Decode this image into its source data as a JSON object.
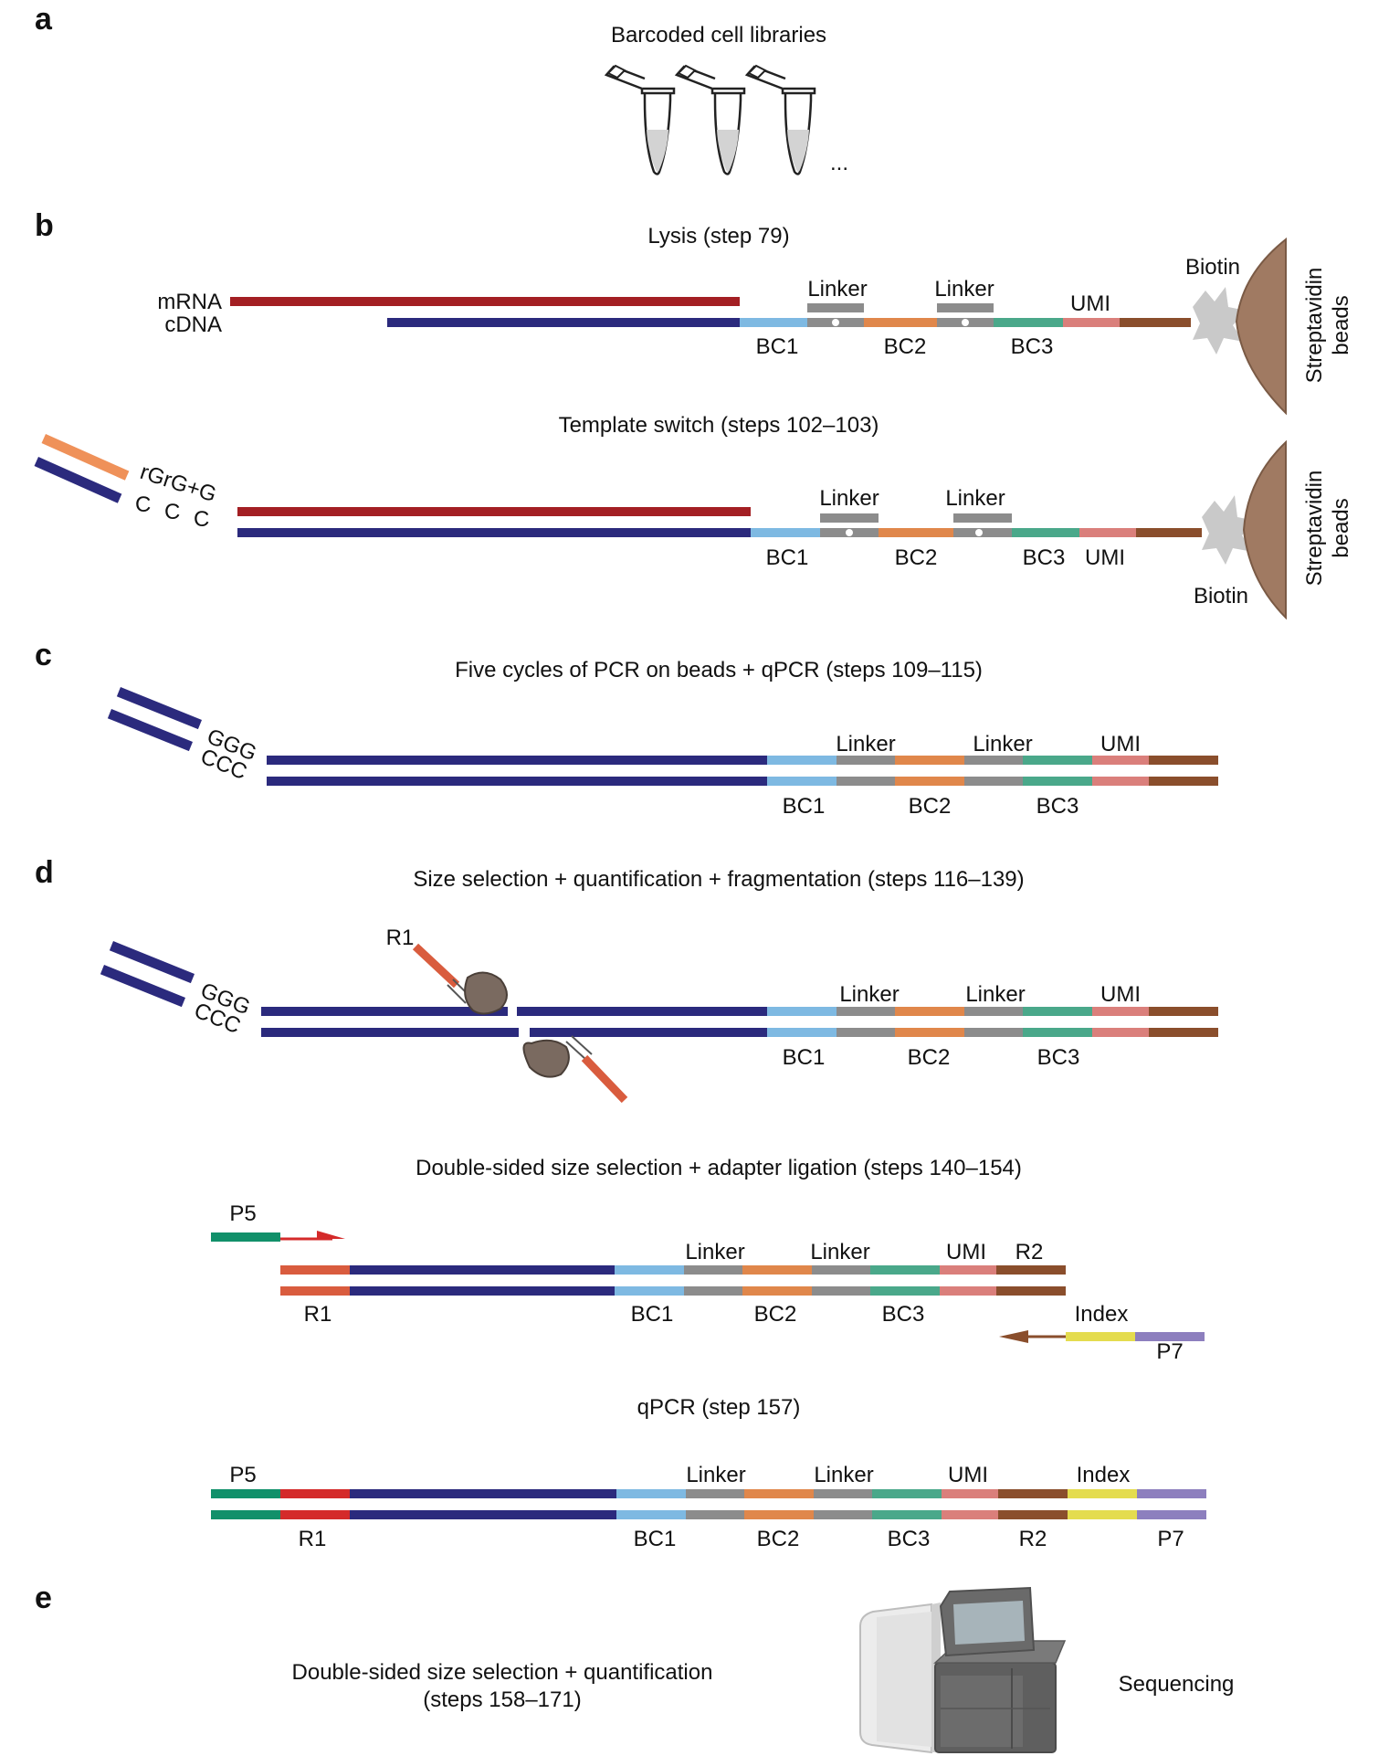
{
  "panels": {
    "a": "a",
    "b": "b",
    "c": "c",
    "d": "d",
    "e": "e"
  },
  "section_a": {
    "title": "Barcoded cell libraries",
    "ellipsis": "..."
  },
  "section_b1": {
    "title": "Lysis (step 79)",
    "mrna": "mRNA",
    "cdna": "cDNA",
    "linker1": "Linker",
    "linker2": "Linker",
    "umi": "UMI",
    "biotin": "Biotin",
    "bc1": "BC1",
    "bc2": "BC2",
    "bc3": "BC3",
    "beads": "Streptavidin beads"
  },
  "section_b2": {
    "title": "Template switch (steps 102–103)",
    "tso": "rGrG+G",
    "c1": "C",
    "c2": "C",
    "c3": "C",
    "linker1": "Linker",
    "linker2": "Linker",
    "bc1": "BC1",
    "bc2": "BC2",
    "bc3": "BC3",
    "umi": "UMI",
    "biotin": "Biotin",
    "beads": "Streptavidin beads"
  },
  "section_c": {
    "title": "Five cycles of PCR on beads + qPCR (steps 109–115)",
    "ggg": "GGG",
    "ccc": "CCC",
    "linker1": "Linker",
    "linker2": "Linker",
    "umi": "UMI",
    "bc1": "BC1",
    "bc2": "BC2",
    "bc3": "BC3"
  },
  "section_d1": {
    "title": "Size selection + quantification + fragmentation (steps 116–139)",
    "r1": "R1",
    "ggg": "GGG",
    "ccc": "CCC",
    "linker1": "Linker",
    "linker2": "Linker",
    "umi": "UMI",
    "bc1": "BC1",
    "bc2": "BC2",
    "bc3": "BC3"
  },
  "section_d2": {
    "title": "Double-sided size selection + adapter ligation (steps 140–154)",
    "p5": "P5",
    "linker1": "Linker",
    "linker2": "Linker",
    "umi": "UMI",
    "r2": "R2",
    "r1": "R1",
    "bc1": "BC1",
    "bc2": "BC2",
    "bc3": "BC3",
    "index": "Index",
    "p7": "P7"
  },
  "section_d3": {
    "title": "qPCR (step 157)",
    "p5": "P5",
    "linker1": "Linker",
    "linker2": "Linker",
    "umi": "UMI",
    "index": "Index",
    "r1": "R1",
    "bc1": "BC1",
    "bc2": "BC2",
    "bc3": "BC3",
    "r2": "R2",
    "p7": "P7"
  },
  "section_e": {
    "line1": "Double-sided size selection + quantification",
    "line2": "(steps 158–171)",
    "sequencing": "Sequencing"
  },
  "colors": {
    "mrna": "#a31f23",
    "cdna": "#2b2a7d",
    "bc1": "#7eb9e2",
    "linker": "#8c8c8c",
    "bc2": "#e0874b",
    "bc3": "#4aa88a",
    "umi": "#da7f7b",
    "handle": "#8a4e2c",
    "tso": "#ef9159",
    "bead": "#a07a62",
    "biotin": "#c9c9c9",
    "r1": "#d95c3e",
    "p5": "#11906a",
    "index": "#e4dc4e",
    "p7": "#8d7fbe",
    "red_r1": "#d42a2a",
    "enzyme": "#7a6a60"
  }
}
